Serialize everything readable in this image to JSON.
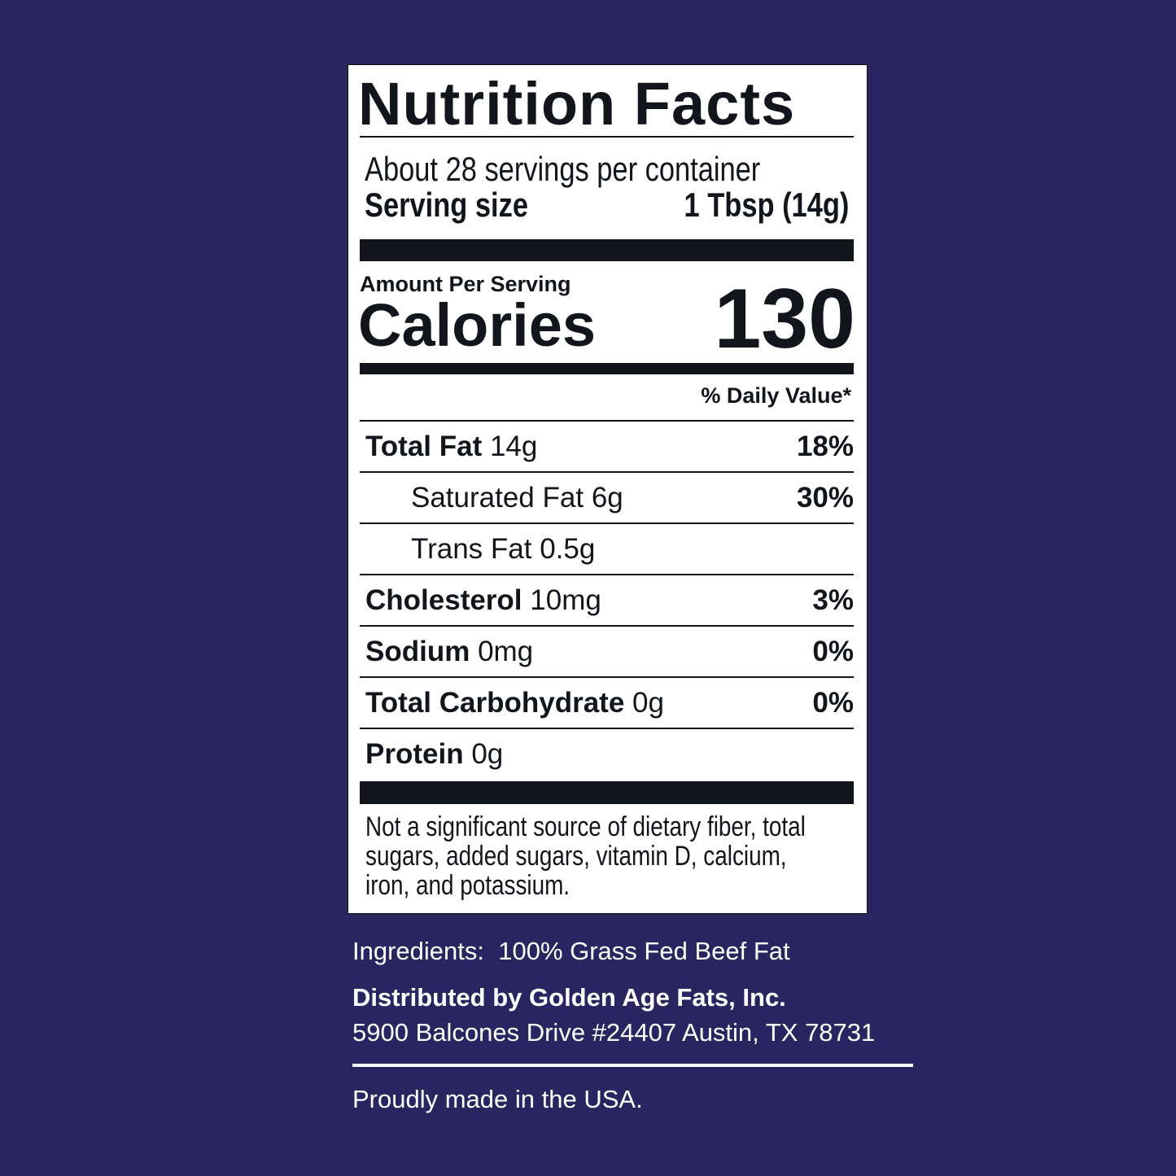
{
  "label": {
    "title": "Nutrition Facts",
    "servings_per_container": "About 28 servings per container",
    "serving_size_label": "Serving size",
    "serving_size_value": "1 Tbsp (14g)",
    "amount_per_serving": "Amount Per Serving",
    "calories_label": "Calories",
    "calories_value": "130",
    "daily_value_header": "% Daily Value*",
    "nutrients": [
      {
        "name": "Total Fat",
        "amount": "14g",
        "dv": "18%",
        "bold": true
      },
      {
        "name": "Saturated Fat",
        "amount": "6g",
        "dv": "30%",
        "bold": false
      },
      {
        "name": "Trans Fat",
        "amount": "0.5g",
        "dv": "",
        "bold": false
      },
      {
        "name": "Cholesterol",
        "amount": "10mg",
        "dv": "3%",
        "bold": true
      },
      {
        "name": "Sodium",
        "amount": "0mg",
        "dv": "0%",
        "bold": true
      },
      {
        "name": "Total Carbohydrate",
        "amount": "0g",
        "dv": "0%",
        "bold": true
      },
      {
        "name": "Protein",
        "amount": "0g",
        "dv": "",
        "bold": true
      }
    ],
    "footnote": "Not a significant source of dietary fiber, total sugars, added sugars, vitamin D, calcium, iron, and potassium."
  },
  "info": {
    "ingredients": "Ingredients:  100% Grass Fed Beef Fat",
    "distributor": "Distributed by Golden Age Fats, Inc.",
    "address": "5900 Balcones Drive #24407 Austin, TX 78731",
    "origin": "Proudly made in the USA."
  },
  "colors": {
    "background": "#2a2560",
    "label_bg": "#ffffff",
    "ink": "#12151c"
  }
}
